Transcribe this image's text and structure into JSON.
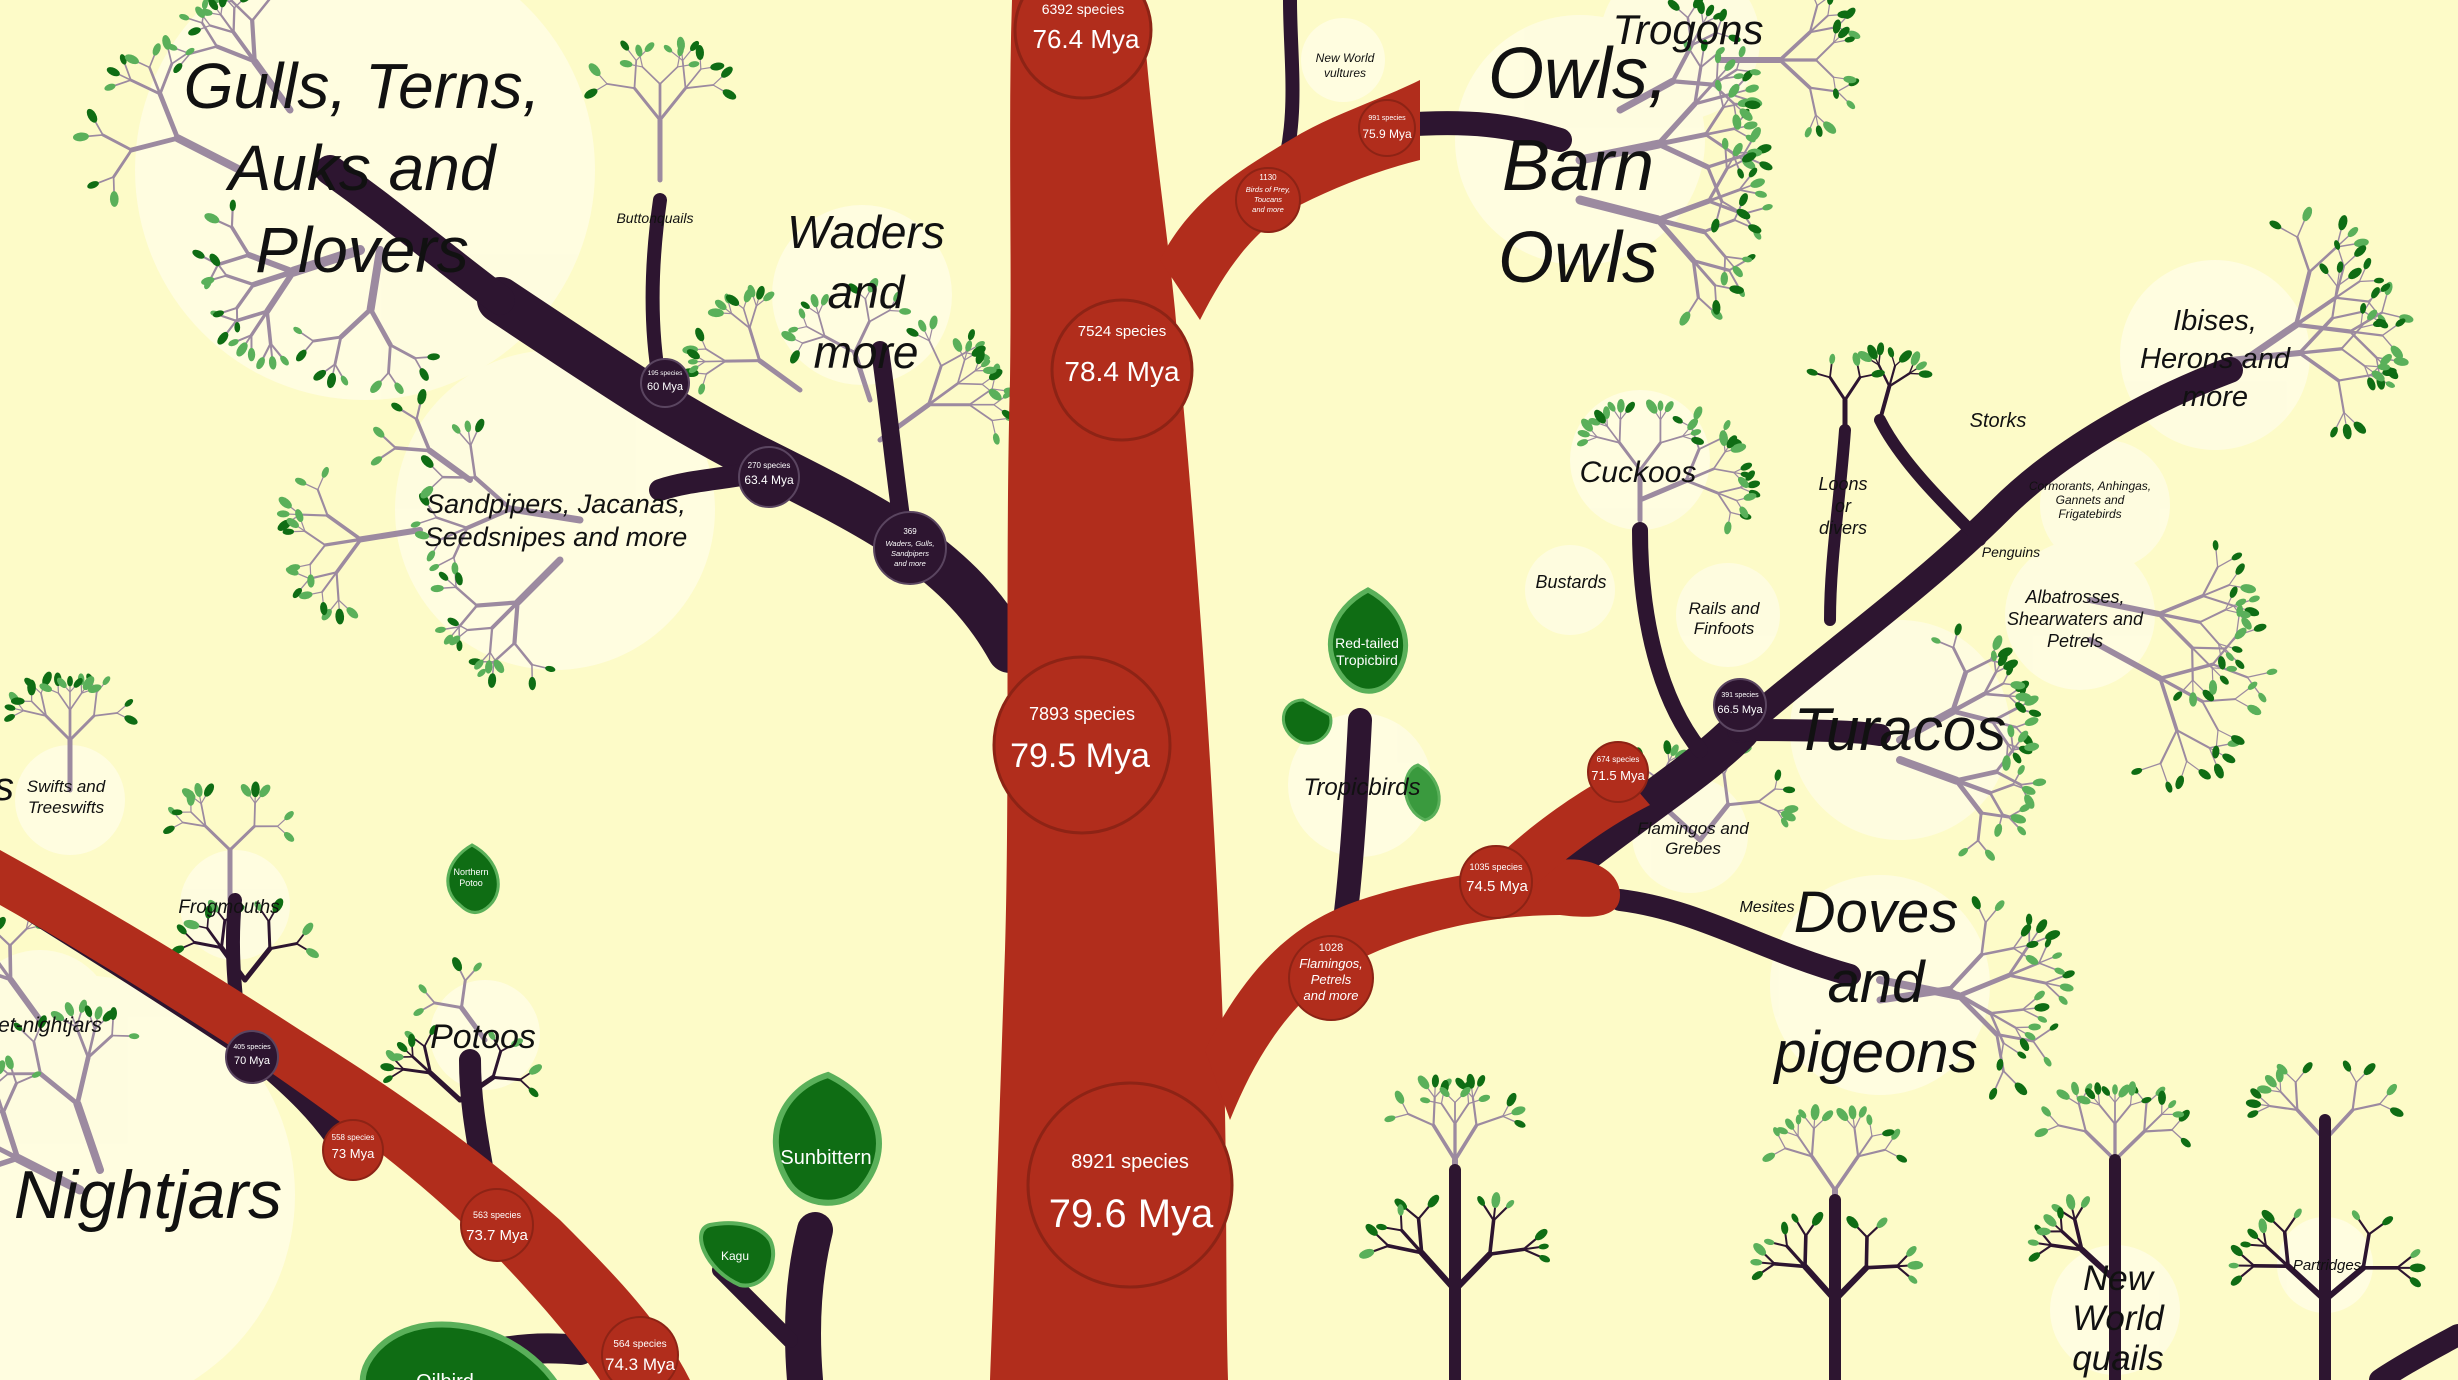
{
  "colors": {
    "background": "#fdfbc8",
    "trunk": "#b12d1c",
    "branch": "#2d1530",
    "twig": "#9c8aa0",
    "leaf_dark": "#0f6d14",
    "leaf_light": "#5ab05a",
    "halo": "#fffde4"
  },
  "nodes": {
    "n6392": {
      "species": "6392 species",
      "age": "76.4 Mya"
    },
    "n7524": {
      "species": "7524 species",
      "age": "78.4 Mya"
    },
    "n7893": {
      "species": "7893 species",
      "age": "79.5 Mya"
    },
    "n8921": {
      "species": "8921 species",
      "age": "79.6 Mya"
    },
    "n1130": {
      "count": "1130",
      "line1": "Birds of Prey,",
      "line2": "Toucans",
      "line3": "and more"
    },
    "n75_9": {
      "species": "991 species",
      "age": "75.9 Mya"
    },
    "n369": {
      "count": "369",
      "line1": "Waders, Gulls,",
      "line2": "Sandpipers",
      "line3": "and more"
    },
    "n63_4": {
      "species": "270 species",
      "age": "63.4 Mya"
    },
    "n60": {
      "species": "195 species",
      "age": "60 Mya"
    },
    "n1028": {
      "count": "1028",
      "line1": "Flamingos,",
      "line2": "Petrels",
      "line3": "and more"
    },
    "n74_5": {
      "species": "1035 species",
      "age": "74.5 Mya"
    },
    "n71_5": {
      "species": "674 species",
      "age": "71.5 Mya"
    },
    "n66_5": {
      "species": "391 species",
      "age": "66.5 Mya"
    },
    "n70": {
      "species": "405 species",
      "age": "70 Mya"
    },
    "n73": {
      "species": "558 species",
      "age": "73 Mya"
    },
    "n73_7": {
      "species": "563 species",
      "age": "73.7 Mya"
    },
    "n74_3": {
      "species": "564 species",
      "age": "74.3 Mya"
    }
  },
  "groups": {
    "gulls": [
      "Gulls, Terns,",
      "Auks and",
      "Plovers"
    ],
    "waders": [
      "Waders",
      "and",
      "more"
    ],
    "sandpipers": [
      "Sandpipers, Jacanas,",
      "Seedsnipes and more"
    ],
    "buttonquails": "Buttonquails",
    "owls": [
      "Owls,",
      "Barn",
      "Owls"
    ],
    "trogons": "Trogons",
    "new_world_vultures": [
      "New World",
      "vultures"
    ],
    "ibises": [
      "Ibises,",
      "Herons and",
      "more"
    ],
    "storks": "Storks",
    "loons": [
      "Loons",
      "or",
      "divers"
    ],
    "cuckoos": "Cuckoos",
    "bustards": "Bustards",
    "rails": [
      "Rails and",
      "Finfoots"
    ],
    "cormorants": [
      "Cormorants, Anhingas,",
      "Gannets and",
      "Frigatebirds"
    ],
    "penguins": "Penguins",
    "albatrosses": [
      "Albatrosses,",
      "Shearwaters and",
      "Petrels"
    ],
    "turacos": "Turacos",
    "tropicbirds": "Tropicbirds",
    "flamingos": [
      "Flamingos and",
      "Grebes"
    ],
    "mesites": "Mesites",
    "doves": [
      "Doves",
      "and",
      "pigeons"
    ],
    "swifts": [
      "Swifts and",
      "Treeswifts"
    ],
    "frogmouths": "Frogmouths",
    "owlet_nightjars": "et-nightjars",
    "potoos": "Potoos",
    "nightjars": "Nightjars",
    "new_world_quails": [
      "New",
      "World",
      "quails"
    ],
    "partridges": "Partridges",
    "edge_s": "s"
  },
  "leaves": {
    "red_tailed_tropicbird": [
      "Red-tailed",
      "Tropicbird"
    ],
    "northern_potoo": [
      "Northern",
      "Potoo"
    ],
    "sunbittern": "Sunbittern",
    "kagu": "Kagu",
    "oilbird": "Oilbird"
  }
}
